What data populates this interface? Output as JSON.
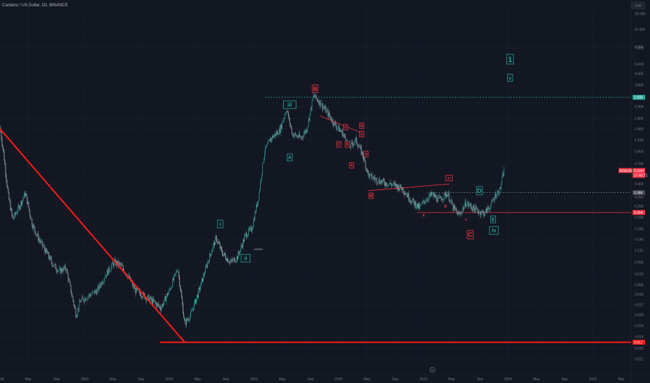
{
  "chart_data": {
    "type": "candlestick",
    "title": "Cardano / US Dollar, 1D, BINANCE",
    "currency": "USD",
    "y_scale": "log",
    "ylim": [
      0.0106,
      19.5
    ],
    "y_ticks": [
      "16.000",
      "11.500",
      "8.000",
      "7.800",
      "5.600",
      "4.600",
      "3.600",
      "2.300",
      "1.800",
      "1.450",
      "1.150",
      "0.900",
      "0.700",
      "0.460",
      "0.350",
      "0.290",
      "0.230",
      "0.180",
      "0.145",
      "0.115",
      "0.090",
      "0.070",
      "0.056",
      "0.046",
      "0.037",
      "0.030",
      "0.024",
      "0.019",
      "0.015",
      "0.012"
    ],
    "x_ticks": [
      "2018",
      "May",
      "Sep",
      "2019",
      "May",
      "Sep",
      "2020",
      "May",
      "Sep",
      "2021",
      "May",
      "Sep",
      "2022",
      "May",
      "Sep",
      "2023",
      "May",
      "Sep",
      "2024",
      "May",
      "Sep",
      "2025",
      "May"
    ],
    "xlim": [
      2018.0,
      2025.45
    ],
    "price_path": [
      [
        2018.0,
        1.5
      ],
      [
        2018.04,
        0.9
      ],
      [
        2018.1,
        0.35
      ],
      [
        2018.15,
        0.22
      ],
      [
        2018.22,
        0.28
      ],
      [
        2018.3,
        0.38
      ],
      [
        2018.38,
        0.2
      ],
      [
        2018.45,
        0.15
      ],
      [
        2018.55,
        0.11
      ],
      [
        2018.63,
        0.085
      ],
      [
        2018.7,
        0.075
      ],
      [
        2018.78,
        0.08
      ],
      [
        2018.85,
        0.045
      ],
      [
        2018.9,
        0.03
      ],
      [
        2018.95,
        0.04
      ],
      [
        2019.05,
        0.045
      ],
      [
        2019.15,
        0.05
      ],
      [
        2019.25,
        0.07
      ],
      [
        2019.35,
        0.09
      ],
      [
        2019.42,
        0.085
      ],
      [
        2019.5,
        0.07
      ],
      [
        2019.6,
        0.05
      ],
      [
        2019.7,
        0.045
      ],
      [
        2019.8,
        0.04
      ],
      [
        2019.9,
        0.035
      ],
      [
        2020.0,
        0.05
      ],
      [
        2020.1,
        0.08
      ],
      [
        2020.18,
        0.025
      ],
      [
        2020.25,
        0.03
      ],
      [
        2020.35,
        0.05
      ],
      [
        2020.45,
        0.09
      ],
      [
        2020.55,
        0.15
      ],
      [
        2020.62,
        0.11
      ],
      [
        2020.72,
        0.09
      ],
      [
        2020.8,
        0.1
      ],
      [
        2020.9,
        0.16
      ],
      [
        2020.97,
        0.18
      ],
      [
        2021.05,
        0.35
      ],
      [
        2021.12,
        0.9
      ],
      [
        2021.2,
        1.2
      ],
      [
        2021.3,
        1.4
      ],
      [
        2021.38,
        2.2
      ],
      [
        2021.45,
        1.3
      ],
      [
        2021.55,
        1.2
      ],
      [
        2021.62,
        1.45
      ],
      [
        2021.7,
        2.9
      ],
      [
        2021.78,
        2.5
      ],
      [
        2021.85,
        2.1
      ],
      [
        2021.95,
        1.6
      ],
      [
        2022.05,
        1.3
      ],
      [
        2022.12,
        1.0
      ],
      [
        2022.2,
        1.15
      ],
      [
        2022.28,
        0.85
      ],
      [
        2022.35,
        0.55
      ],
      [
        2022.45,
        0.5
      ],
      [
        2022.55,
        0.47
      ],
      [
        2022.65,
        0.45
      ],
      [
        2022.75,
        0.42
      ],
      [
        2022.85,
        0.33
      ],
      [
        2022.95,
        0.28
      ],
      [
        2023.02,
        0.33
      ],
      [
        2023.1,
        0.37
      ],
      [
        2023.18,
        0.33
      ],
      [
        2023.28,
        0.38
      ],
      [
        2023.35,
        0.28
      ],
      [
        2023.42,
        0.24
      ],
      [
        2023.5,
        0.31
      ],
      [
        2023.58,
        0.28
      ],
      [
        2023.65,
        0.26
      ],
      [
        2023.72,
        0.25
      ],
      [
        2023.8,
        0.3
      ],
      [
        2023.85,
        0.37
      ],
      [
        2023.9,
        0.4
      ],
      [
        2023.95,
        0.62
      ]
    ],
    "price_levels": [
      {
        "label": "2.800",
        "value": 2.8,
        "style": "dashed",
        "color": "#26a69a"
      },
      {
        "label": "0.384",
        "value": 0.384,
        "style": "dashed",
        "color": "#787b86"
      },
      {
        "label": "0.254",
        "value": 0.254,
        "style": "solid",
        "color": "#f23645"
      },
      {
        "label": "0.017",
        "value": 0.017,
        "style": "solid",
        "color": "#ff1a1a"
      }
    ],
    "current_price": {
      "label": "ADAUSD",
      "value": "0.6047",
      "countdown": "17:43:71"
    },
    "trend_line": {
      "points": [
        [
          2018.0,
          1.45
        ],
        [
          2020.18,
          0.017
        ],
        [
          2025.45,
          0.017
        ]
      ],
      "color": "#ff1a1a"
    },
    "wave_labels": [
      {
        "text": "1",
        "x": 2024.02,
        "y": 6.2,
        "color": "#26a69a",
        "boxed": true,
        "size": 11
      },
      {
        "text": "v",
        "x": 2024.02,
        "y": 4.2,
        "color": "#26a69a",
        "boxed": true,
        "size": 7
      },
      {
        "text": "B",
        "x": 2021.72,
        "y": 3.35,
        "color": "#f23645",
        "boxed": true,
        "size": 8
      },
      {
        "text": "iii",
        "x": 2021.42,
        "y": 2.4,
        "color": "#26a69a",
        "boxed": true,
        "size": 8
      },
      {
        "text": "A",
        "x": 2021.42,
        "y": 0.8,
        "color": "#26a69a",
        "boxed": true,
        "size": 7
      },
      {
        "text": "i",
        "x": 2020.6,
        "y": 0.2,
        "color": "#26a69a",
        "boxed": true,
        "size": 8
      },
      {
        "text": "ii",
        "x": 2020.9,
        "y": 0.098,
        "color": "#26a69a",
        "boxed": true,
        "size": 8
      },
      {
        "text": "D",
        "x": 2023.66,
        "y": 0.4,
        "color": "#26a69a",
        "boxed": true,
        "size": 9
      },
      {
        "text": "C",
        "x": 2023.55,
        "y": 0.16,
        "color": "#f23645",
        "boxed": true,
        "size": 9
      },
      {
        "text": "E",
        "x": 2023.82,
        "y": 0.22,
        "color": "#26a69a",
        "boxed": true,
        "size": 7
      },
      {
        "text": "iv",
        "x": 2023.83,
        "y": 0.175,
        "color": "#26a69a",
        "boxed": true,
        "size": 8
      },
      {
        "text": "B",
        "x": 2022.27,
        "y": 1.55,
        "color": "#f23645",
        "boxed": true,
        "size": 5
      },
      {
        "text": "D",
        "x": 2022.08,
        "y": 1.5,
        "color": "#f23645",
        "boxed": true,
        "size": 5
      },
      {
        "text": "E",
        "x": 2022.27,
        "y": 1.3,
        "color": "#f23645",
        "boxed": true,
        "size": 5
      },
      {
        "text": "C",
        "x": 2022.0,
        "y": 1.05,
        "color": "#f23645",
        "boxed": true,
        "size": 5
      },
      {
        "text": "B",
        "x": 2022.1,
        "y": 1.05,
        "color": "#f23645",
        "boxed": true,
        "size": 5
      },
      {
        "text": "A",
        "x": 2022.15,
        "y": 0.68,
        "color": "#f23645",
        "boxed": true,
        "size": 5
      },
      {
        "text": "A",
        "x": 2022.32,
        "y": 0.86,
        "color": "#f23645",
        "boxed": true,
        "size": 5
      },
      {
        "text": "W",
        "x": 2022.38,
        "y": 0.36,
        "color": "#f23645",
        "boxed": true,
        "size": 5
      },
      {
        "text": "iv",
        "x": 2023.3,
        "y": 0.52,
        "color": "#f23645",
        "boxed": true,
        "size": 5
      },
      {
        "text": "X",
        "x": 2023.0,
        "y": 0.24,
        "color": "#f23645",
        "boxed": false,
        "size": 5
      },
      {
        "text": "B",
        "x": 2023.26,
        "y": 0.29,
        "color": "#f23645",
        "boxed": false,
        "size": 5
      },
      {
        "text": "v",
        "x": 2023.5,
        "y": 0.22,
        "color": "#f23645",
        "boxed": false,
        "size": 5
      }
    ],
    "triangle_lines": [
      [
        [
          2022.35,
          0.4
        ],
        [
          2023.3,
          0.46
        ]
      ],
      [
        [
          2021.78,
          1.9
        ],
        [
          2022.25,
          1.35
        ]
      ],
      [
        [
          2021.0,
          0.118
        ],
        [
          2021.1,
          0.118
        ]
      ]
    ]
  }
}
